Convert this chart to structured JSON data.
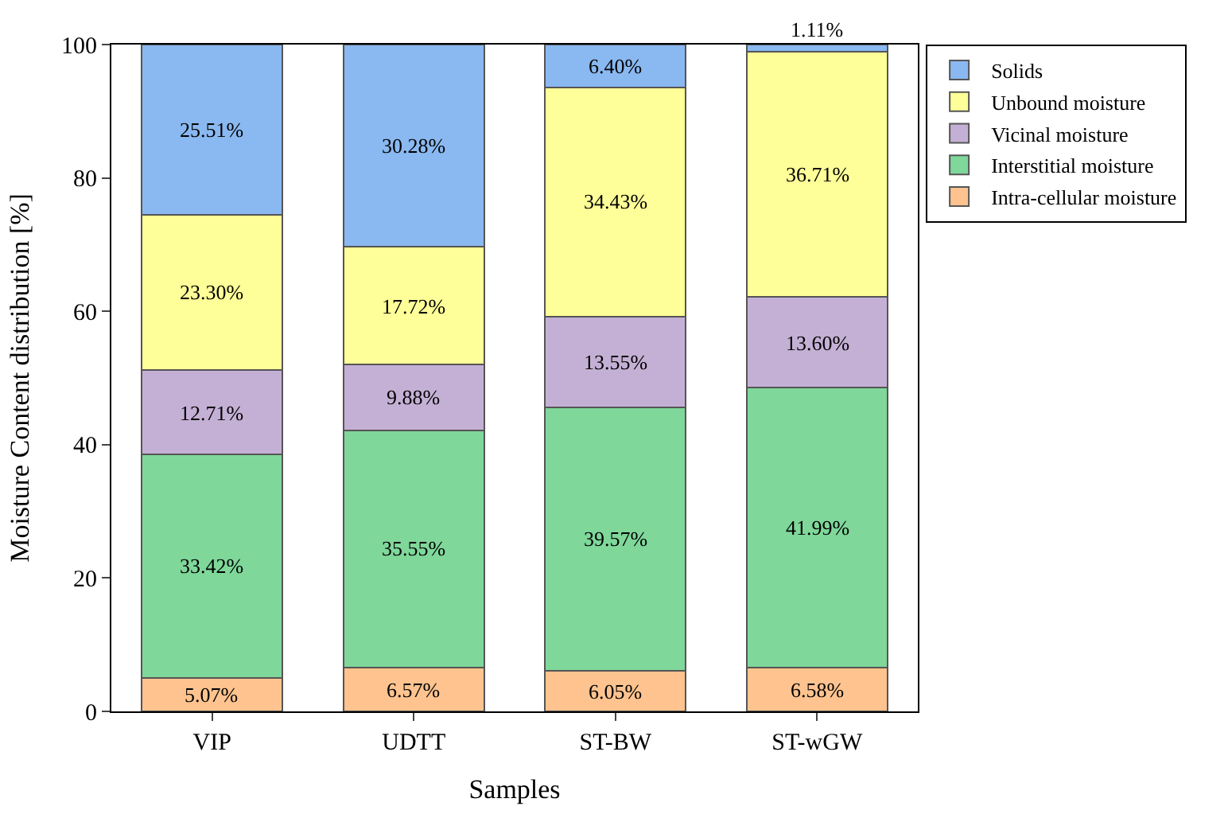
{
  "chart_data": {
    "type": "bar",
    "stacked": true,
    "xlabel": "Samples",
    "ylabel": "Moisture Content distribution [%]",
    "categories": [
      "VIP",
      "UDTT",
      "ST-BW",
      "ST-wGW"
    ],
    "series": [
      {
        "name": "Intra-cellular moisture",
        "color": "#ffc38f",
        "values": [
          5.07,
          6.57,
          6.05,
          6.58
        ],
        "value_labels": [
          "5.07%",
          "6.57%",
          "6.05%",
          "6.58%"
        ]
      },
      {
        "name": "Interstitial moisture",
        "color": "#7fd79a",
        "values": [
          33.42,
          35.55,
          39.57,
          41.99
        ],
        "value_labels": [
          "33.42%",
          "35.55%",
          "39.57%",
          "41.99%"
        ]
      },
      {
        "name": "Vicinal moisture",
        "color": "#c5b0d5",
        "values": [
          12.71,
          9.88,
          13.55,
          13.6
        ],
        "value_labels": [
          "12.71%",
          "9.88%",
          "13.55%",
          "13.60%"
        ]
      },
      {
        "name": "Unbound moisture",
        "color": "#ffff99",
        "values": [
          23.3,
          17.72,
          34.43,
          36.71
        ],
        "value_labels": [
          "23.30%",
          "17.72%",
          "34.43%",
          "36.71%"
        ]
      },
      {
        "name": "Solids",
        "color": "#8ab8f0",
        "values": [
          25.51,
          30.28,
          6.4,
          1.11
        ],
        "value_labels": [
          "25.51%",
          "30.28%",
          "6.40%",
          "1.11%"
        ]
      }
    ],
    "ylim": [
      0,
      100
    ],
    "yticks": [
      0,
      20,
      40,
      60,
      80,
      100
    ],
    "legend": "top right"
  }
}
